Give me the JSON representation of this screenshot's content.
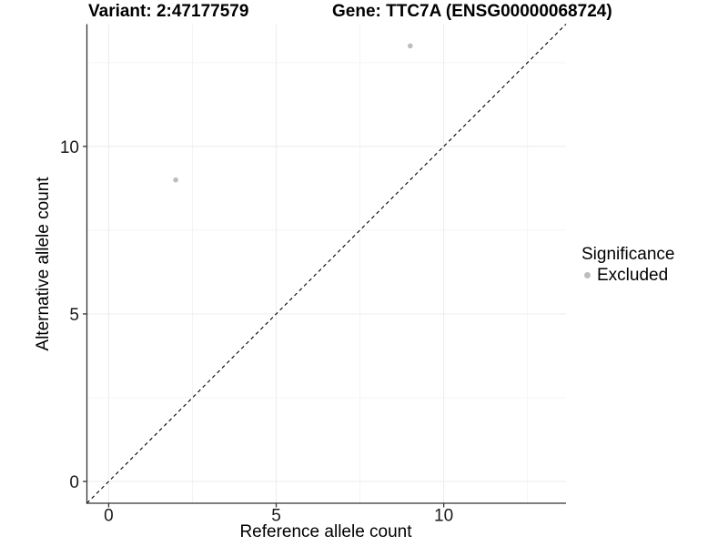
{
  "chart_data": {
    "type": "scatter",
    "title_left": "Variant: 2:47177579",
    "title_right": "Gene: TTC7A (ENSG00000068724)",
    "xlabel": "Reference allele count",
    "ylabel": "Alternative allele count",
    "xlim": [
      -0.65,
      13.65
    ],
    "ylim": [
      -0.65,
      13.65
    ],
    "x_ticks": [
      0,
      5,
      10
    ],
    "y_ticks": [
      0,
      5,
      10
    ],
    "x_minor_ticks": [
      2.5,
      7.5,
      12.5
    ],
    "y_minor_ticks": [
      2.5,
      7.5,
      12.5
    ],
    "grid": true,
    "legend": {
      "position": "right",
      "title": "Significance",
      "items": [
        {
          "label": "Excluded",
          "color": "#bdbdbd"
        }
      ]
    },
    "series": [
      {
        "name": "Excluded",
        "color": "#bdbdbd",
        "points": [
          [
            2,
            9
          ],
          [
            9,
            13
          ]
        ]
      }
    ],
    "reference_line": {
      "kind": "identity",
      "style": "dashed",
      "color": "#000000"
    }
  },
  "colors": {
    "background": "#ffffff",
    "axis_line": "#333333",
    "grid_major": "#ececec",
    "grid_minor": "#f4f4f4",
    "tick_text": "#1a1a1a",
    "point": "#bdbdbd"
  }
}
